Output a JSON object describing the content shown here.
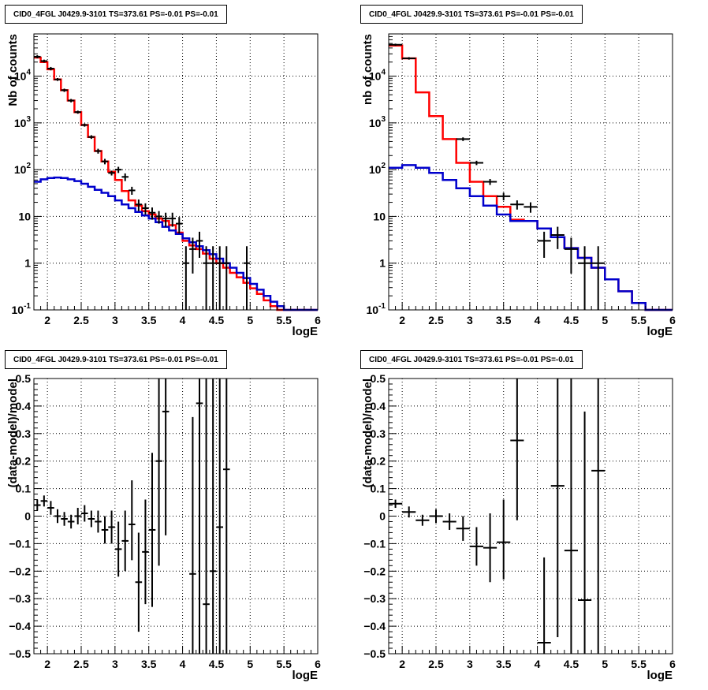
{
  "chart_data": [
    {
      "type": "line",
      "title": "CID0_4FGL J0429.9-3101 TS=373.61 PS=-0.01 PS=-0.01",
      "xlabel": "logE",
      "ylabel": "Nb of counts",
      "xlim": [
        1.8,
        6.0
      ],
      "ylim": [
        0.1,
        80000
      ],
      "yscale": "log",
      "grid": true,
      "xticks": [
        "2",
        "2.5",
        "3",
        "3.5",
        "4",
        "4.5",
        "5",
        "5.5",
        "6"
      ],
      "yticks": [
        {
          "v": 0.1,
          "label": "10^-1"
        },
        {
          "v": 1,
          "label": "1"
        },
        {
          "v": 10,
          "label": "10"
        },
        {
          "v": 100,
          "label": "10^2"
        },
        {
          "v": 1000,
          "label": "10^3"
        },
        {
          "v": 10000,
          "label": "10^4"
        }
      ],
      "bin_edges": [
        1.8,
        1.9,
        2.0,
        2.1,
        2.2,
        2.3,
        2.4,
        2.5,
        2.6,
        2.7,
        2.8,
        2.9,
        3.0,
        3.1,
        3.2,
        3.3,
        3.4,
        3.5,
        3.6,
        3.7,
        3.8,
        3.9,
        4.0,
        4.1,
        4.2,
        4.3,
        4.4,
        4.5,
        4.6,
        4.7,
        4.8,
        4.9,
        5.0,
        5.1,
        5.2,
        5.3,
        5.4,
        5.5,
        5.6,
        5.7,
        5.8,
        5.9,
        6.0
      ],
      "series": [
        {
          "color": "#ff0000",
          "values": [
            25000,
            20000,
            14000,
            8500,
            5000,
            3000,
            1700,
            900,
            500,
            250,
            150,
            90,
            60,
            35,
            22,
            17,
            13,
            11,
            9,
            8,
            6.5,
            4.5,
            3.0,
            2.4,
            2.0,
            1.6,
            1.25,
            1.0,
            0.8,
            0.62,
            0.5,
            0.38,
            0.29,
            0.22,
            0.16,
            0.12,
            0.1,
            0.1,
            0.1,
            0.1,
            0.1,
            0.1
          ]
        },
        {
          "color": "#0000cc",
          "values": [
            55,
            62,
            66,
            68,
            66,
            62,
            57,
            50,
            43,
            37,
            32,
            27,
            22,
            18,
            15,
            12.5,
            10.5,
            9,
            7.5,
            6,
            5,
            4.2,
            3.4,
            2.8,
            2.3,
            1.9,
            1.55,
            1.25,
            1.0,
            0.8,
            0.62,
            0.48,
            0.36,
            0.27,
            0.2,
            0.15,
            0.12,
            0.1,
            0.1,
            0.1,
            0.1,
            0.1
          ]
        }
      ],
      "points": [
        {
          "x": 1.85,
          "y": 26000,
          "lo": 24000,
          "hi": 28000
        },
        {
          "x": 1.95,
          "y": 21000,
          "lo": 19500,
          "hi": 22500
        },
        {
          "x": 2.05,
          "y": 14500,
          "lo": 13300,
          "hi": 15700
        },
        {
          "x": 2.15,
          "y": 8500,
          "lo": 7900,
          "hi": 9100
        },
        {
          "x": 2.25,
          "y": 5000,
          "lo": 4600,
          "hi": 5400
        },
        {
          "x": 2.35,
          "y": 3000,
          "lo": 2750,
          "hi": 3250
        },
        {
          "x": 2.45,
          "y": 1700,
          "lo": 1570,
          "hi": 1830
        },
        {
          "x": 2.55,
          "y": 900,
          "lo": 830,
          "hi": 970
        },
        {
          "x": 2.65,
          "y": 500,
          "lo": 455,
          "hi": 545
        },
        {
          "x": 2.75,
          "y": 250,
          "lo": 220,
          "hi": 280
        },
        {
          "x": 2.85,
          "y": 150,
          "lo": 130,
          "hi": 170
        },
        {
          "x": 2.95,
          "y": 85,
          "lo": 75,
          "hi": 95
        },
        {
          "x": 3.05,
          "y": 100,
          "lo": 85,
          "hi": 115
        },
        {
          "x": 3.15,
          "y": 70,
          "lo": 57,
          "hi": 83
        },
        {
          "x": 3.25,
          "y": 36,
          "lo": 29,
          "hi": 43
        },
        {
          "x": 3.35,
          "y": 18,
          "lo": 13,
          "hi": 23
        },
        {
          "x": 3.45,
          "y": 15,
          "lo": 11,
          "hi": 19
        },
        {
          "x": 3.55,
          "y": 12,
          "lo": 8.5,
          "hi": 15.5
        },
        {
          "x": 3.65,
          "y": 10,
          "lo": 7,
          "hi": 13
        },
        {
          "x": 3.75,
          "y": 9,
          "lo": 6,
          "hi": 12
        },
        {
          "x": 3.85,
          "y": 9,
          "lo": 6,
          "hi": 12
        },
        {
          "x": 3.95,
          "y": 7,
          "lo": 4.3,
          "hi": 9.7
        },
        {
          "x": 4.05,
          "y": 1,
          "lo": 0.1,
          "hi": 2.3
        },
        {
          "x": 4.15,
          "y": 2,
          "lo": 0.6,
          "hi": 3.5
        },
        {
          "x": 4.25,
          "y": 3,
          "lo": 1.3,
          "hi": 4.7
        },
        {
          "x": 4.35,
          "y": 1,
          "lo": 0.1,
          "hi": 2.3
        },
        {
          "x": 4.45,
          "y": 1,
          "lo": 0.1,
          "hi": 2.3
        },
        {
          "x": 4.55,
          "y": 1,
          "lo": 0.1,
          "hi": 2.3
        },
        {
          "x": 4.65,
          "y": 1,
          "lo": 0.1,
          "hi": 2.3
        },
        {
          "x": 4.95,
          "y": 1,
          "lo": 0.1,
          "hi": 2.3
        }
      ]
    },
    {
      "type": "line",
      "title": "CID0_4FGL J0429.9-3101 TS=373.61 PS=-0.01 PS=-0.01",
      "xlabel": "logE",
      "ylabel": "nb of counts",
      "xlim": [
        1.8,
        6.0
      ],
      "ylim": [
        0.1,
        80000
      ],
      "yscale": "log",
      "grid": true,
      "xticks": [
        "2",
        "2.5",
        "3",
        "3.5",
        "4",
        "4.5",
        "5",
        "5.5",
        "6"
      ],
      "yticks": [
        {
          "v": 0.1,
          "label": "10^-1"
        },
        {
          "v": 1,
          "label": "1"
        },
        {
          "v": 10,
          "label": "10"
        },
        {
          "v": 100,
          "label": "10^2"
        },
        {
          "v": 1000,
          "label": "10^3"
        },
        {
          "v": 10000,
          "label": "10^4"
        }
      ],
      "bin_edges": [
        1.8,
        2.0,
        2.2,
        2.4,
        2.6,
        2.8,
        3.0,
        3.2,
        3.4,
        3.6,
        3.8,
        4.0,
        4.2,
        4.4,
        4.6,
        4.8,
        5.0,
        5.2,
        5.4,
        5.6,
        5.8,
        6.0
      ],
      "series": [
        {
          "color": "#ff0000",
          "values": [
            45000,
            24000,
            4500,
            1400,
            450,
            140,
            55,
            27,
            16,
            8.5,
            8,
            5.5,
            3.6,
            2.1,
            1.3,
            0.8,
            0.45,
            0.25,
            0.14,
            0.1,
            0.1
          ]
        },
        {
          "color": "#0000cc",
          "values": [
            110,
            125,
            110,
            85,
            60,
            40,
            27,
            17,
            11,
            8,
            8,
            5.5,
            3.6,
            2.1,
            1.3,
            0.8,
            0.45,
            0.25,
            0.14,
            0.1,
            0.1
          ]
        }
      ],
      "points": [
        {
          "x": 1.9,
          "y": 47000,
          "lo": 44500,
          "hi": 49500
        },
        {
          "x": 2.1,
          "y": 24000,
          "lo": 22500,
          "hi": 25500
        },
        {
          "x": 2.9,
          "y": 450,
          "lo": 410,
          "hi": 490
        },
        {
          "x": 3.1,
          "y": 140,
          "lo": 125,
          "hi": 155
        },
        {
          "x": 3.3,
          "y": 55,
          "lo": 47,
          "hi": 63
        },
        {
          "x": 3.5,
          "y": 27,
          "lo": 22,
          "hi": 32
        },
        {
          "x": 3.7,
          "y": 18,
          "lo": 14,
          "hi": 22
        },
        {
          "x": 3.9,
          "y": 16,
          "lo": 12,
          "hi": 20
        },
        {
          "x": 4.1,
          "y": 3,
          "lo": 1.3,
          "hi": 4.7
        },
        {
          "x": 4.3,
          "y": 4,
          "lo": 2,
          "hi": 6
        },
        {
          "x": 4.5,
          "y": 2,
          "lo": 0.6,
          "hi": 3.5
        },
        {
          "x": 4.7,
          "y": 1,
          "lo": 0.1,
          "hi": 2.3
        },
        {
          "x": 4.9,
          "y": 1,
          "lo": 0.1,
          "hi": 2.3
        }
      ]
    },
    {
      "type": "scatter",
      "title": "CID0_4FGL J0429.9-3101 TS=373.61 PS=-0.01 PS=-0.01",
      "xlabel": "logE",
      "ylabel": "(data-model)/model",
      "xlim": [
        1.8,
        6.0
      ],
      "ylim": [
        -0.5,
        0.5
      ],
      "grid": true,
      "xticks": [
        "2",
        "2.5",
        "3",
        "3.5",
        "4",
        "4.5",
        "5",
        "5.5",
        "6"
      ],
      "yticks": [
        {
          "v": -0.5,
          "label": "−0.5"
        },
        {
          "v": -0.4,
          "label": "−0.4"
        },
        {
          "v": -0.3,
          "label": "−0.3"
        },
        {
          "v": -0.2,
          "label": "−0.2"
        },
        {
          "v": -0.1,
          "label": "−0.1"
        },
        {
          "v": 0,
          "label": "0"
        },
        {
          "v": 0.1,
          "label": "0.1"
        },
        {
          "v": 0.2,
          "label": "0.2"
        },
        {
          "v": 0.3,
          "label": "0.3"
        },
        {
          "v": 0.4,
          "label": "0.4"
        },
        {
          "v": 0.5,
          "label": "0.5"
        }
      ],
      "half_width": 0.05,
      "points": [
        {
          "x": 1.85,
          "y": 0.04,
          "lo": 0.02,
          "hi": 0.06
        },
        {
          "x": 1.95,
          "y": 0.055,
          "lo": 0.035,
          "hi": 0.075
        },
        {
          "x": 2.05,
          "y": 0.03,
          "lo": 0.005,
          "hi": 0.055
        },
        {
          "x": 2.15,
          "y": 0.0,
          "lo": -0.025,
          "hi": 0.025
        },
        {
          "x": 2.25,
          "y": -0.01,
          "lo": -0.035,
          "hi": 0.015
        },
        {
          "x": 2.35,
          "y": -0.02,
          "lo": -0.045,
          "hi": 0.005
        },
        {
          "x": 2.45,
          "y": 0.0,
          "lo": -0.03,
          "hi": 0.03
        },
        {
          "x": 2.55,
          "y": 0.01,
          "lo": -0.02,
          "hi": 0.04
        },
        {
          "x": 2.65,
          "y": -0.01,
          "lo": -0.04,
          "hi": 0.02
        },
        {
          "x": 2.75,
          "y": -0.02,
          "lo": -0.06,
          "hi": 0.02
        },
        {
          "x": 2.85,
          "y": -0.05,
          "lo": -0.1,
          "hi": 0.0
        },
        {
          "x": 2.95,
          "y": -0.04,
          "lo": -0.1,
          "hi": 0.02
        },
        {
          "x": 3.05,
          "y": -0.12,
          "lo": -0.22,
          "hi": -0.02
        },
        {
          "x": 3.15,
          "y": -0.09,
          "lo": -0.2,
          "hi": 0.02
        },
        {
          "x": 3.25,
          "y": -0.03,
          "lo": -0.16,
          "hi": 0.13
        },
        {
          "x": 3.35,
          "y": -0.24,
          "lo": -0.42,
          "hi": -0.06
        },
        {
          "x": 3.45,
          "y": -0.13,
          "lo": -0.32,
          "hi": 0.06
        },
        {
          "x": 3.55,
          "y": -0.05,
          "lo": -0.33,
          "hi": 0.23
        },
        {
          "x": 3.65,
          "y": 0.2,
          "lo": -0.18,
          "hi": 0.5
        },
        {
          "x": 3.75,
          "y": 0.38,
          "lo": -0.07,
          "hi": 0.5
        },
        {
          "x": 4.15,
          "y": -0.21,
          "lo": -0.5,
          "hi": 0.36
        },
        {
          "x": 4.25,
          "y": 0.41,
          "lo": -0.5,
          "hi": 0.5
        },
        {
          "x": 4.35,
          "y": -0.32,
          "lo": -0.5,
          "hi": 0.5
        },
        {
          "x": 4.45,
          "y": -0.2,
          "lo": -0.5,
          "hi": 0.5
        },
        {
          "x": 4.55,
          "y": -0.04,
          "lo": -0.5,
          "hi": 0.5
        },
        {
          "x": 4.65,
          "y": 0.17,
          "lo": -0.5,
          "hi": 0.5
        }
      ]
    },
    {
      "type": "scatter",
      "title": "CID0_4FGL J0429.9-3101 TS=373.61 PS=-0.01 PS=-0.01",
      "xlabel": "logE",
      "ylabel": "(data-model)/model",
      "xlim": [
        1.8,
        6.0
      ],
      "ylim": [
        -0.5,
        0.5
      ],
      "grid": true,
      "xticks": [
        "2",
        "2.5",
        "3",
        "3.5",
        "4",
        "4.5",
        "5",
        "5.5",
        "6"
      ],
      "yticks": [
        {
          "v": -0.5,
          "label": "−0.5"
        },
        {
          "v": -0.4,
          "label": "−0.4"
        },
        {
          "v": -0.3,
          "label": "−0.3"
        },
        {
          "v": -0.2,
          "label": "−0.2"
        },
        {
          "v": -0.1,
          "label": "−0.1"
        },
        {
          "v": 0,
          "label": "0"
        },
        {
          "v": 0.1,
          "label": "0.1"
        },
        {
          "v": 0.2,
          "label": "0.2"
        },
        {
          "v": 0.3,
          "label": "0.3"
        },
        {
          "v": 0.4,
          "label": "0.4"
        },
        {
          "v": 0.5,
          "label": "0.5"
        }
      ],
      "half_width": 0.1,
      "points": [
        {
          "x": 1.9,
          "y": 0.045,
          "lo": 0.03,
          "hi": 0.06
        },
        {
          "x": 2.1,
          "y": 0.015,
          "lo": -0.005,
          "hi": 0.035
        },
        {
          "x": 2.3,
          "y": -0.015,
          "lo": -0.035,
          "hi": 0.005
        },
        {
          "x": 2.5,
          "y": 0.0,
          "lo": -0.025,
          "hi": 0.025
        },
        {
          "x": 2.7,
          "y": -0.02,
          "lo": -0.05,
          "hi": 0.01
        },
        {
          "x": 2.9,
          "y": -0.045,
          "lo": -0.09,
          "hi": 0.0
        },
        {
          "x": 3.1,
          "y": -0.11,
          "lo": -0.18,
          "hi": -0.04
        },
        {
          "x": 3.3,
          "y": -0.115,
          "lo": -0.24,
          "hi": 0.01
        },
        {
          "x": 3.5,
          "y": -0.095,
          "lo": -0.23,
          "hi": 0.06
        },
        {
          "x": 3.7,
          "y": 0.275,
          "lo": -0.015,
          "hi": 0.5
        },
        {
          "x": 4.1,
          "y": -0.46,
          "lo": -0.5,
          "hi": -0.15
        },
        {
          "x": 4.3,
          "y": 0.11,
          "lo": -0.44,
          "hi": 0.5
        },
        {
          "x": 4.5,
          "y": -0.125,
          "lo": -0.5,
          "hi": 0.5
        },
        {
          "x": 4.7,
          "y": -0.305,
          "lo": -0.5,
          "hi": 0.38
        },
        {
          "x": 4.9,
          "y": 0.165,
          "lo": -0.5,
          "hi": 0.5
        }
      ]
    }
  ]
}
